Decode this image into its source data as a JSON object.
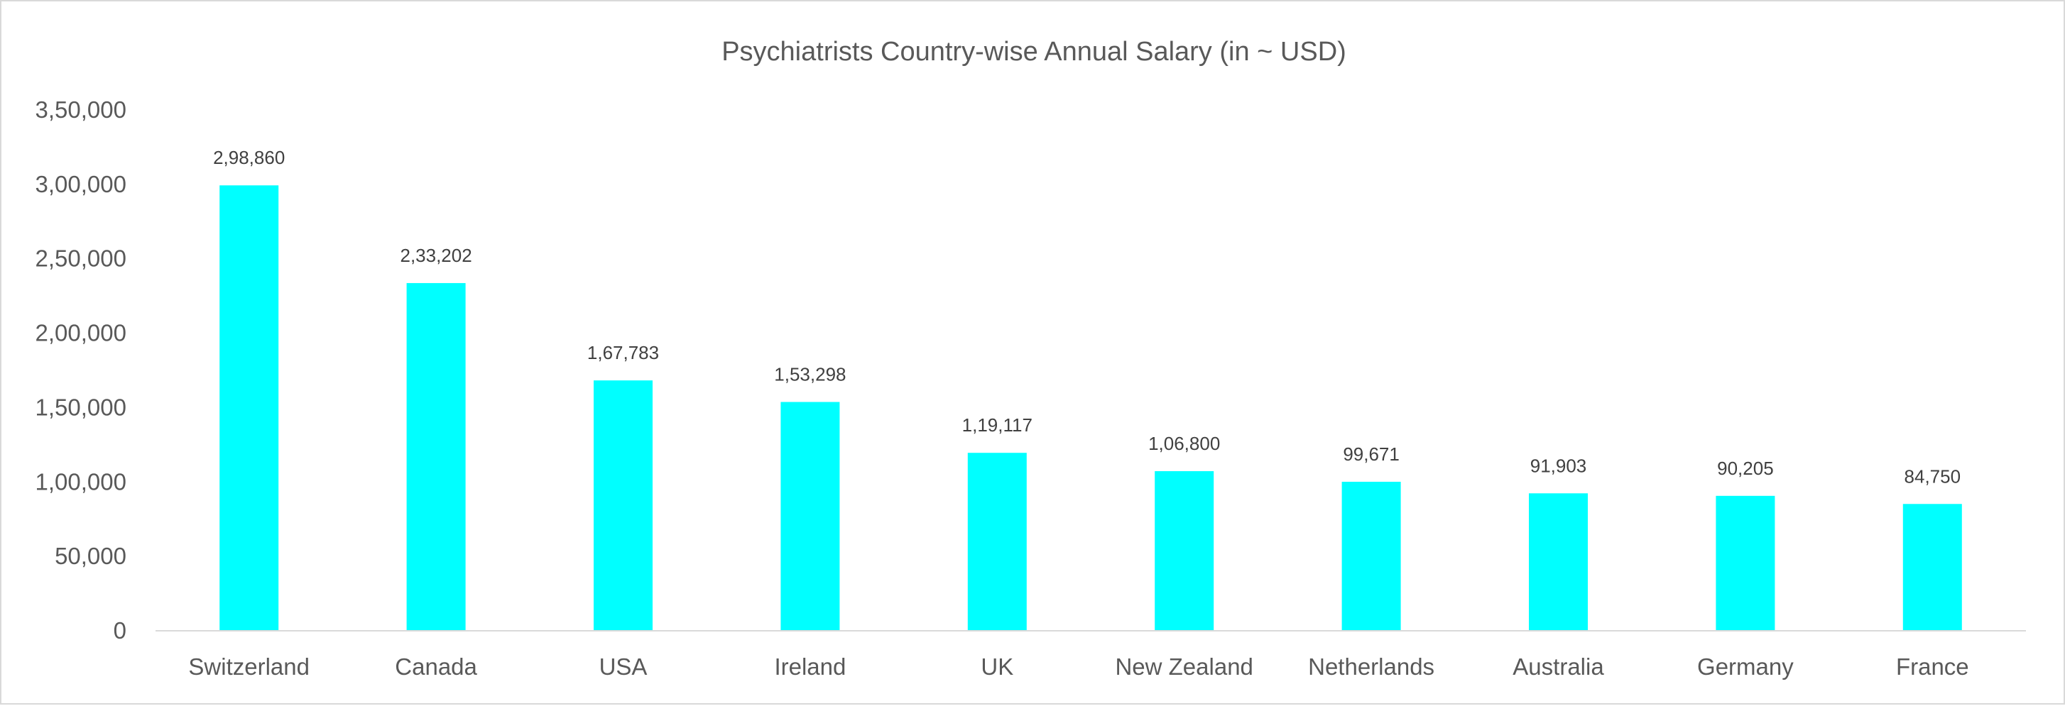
{
  "chart_data": {
    "type": "bar",
    "title": "Psychiatrists Country-wise Annual Salary (in ~ USD)",
    "xlabel": "",
    "ylabel": "",
    "categories": [
      "Switzerland",
      "Canada",
      "USA",
      "Ireland",
      "UK",
      "New Zealand",
      "Netherlands",
      "Australia",
      "Germany",
      "France"
    ],
    "values": [
      298860,
      233202,
      167783,
      153298,
      119117,
      106800,
      99671,
      91903,
      90205,
      84750
    ],
    "data_labels": [
      "2,98,860",
      "2,33,202",
      "1,67,783",
      "1,53,298",
      "1,19,117",
      "1,06,800",
      "99,671",
      "91,903",
      "90,205",
      "84,750"
    ],
    "ylim": [
      0,
      350000
    ],
    "yticks": [
      0,
      50000,
      100000,
      150000,
      200000,
      250000,
      300000,
      350000
    ],
    "ytick_labels": [
      "0",
      "50,000",
      "1,00,000",
      "1,50,000",
      "2,00,000",
      "2,50,000",
      "3,00,000",
      "3,50,000"
    ],
    "grid": false,
    "legend": "none",
    "bar_color": "#00FFFF"
  }
}
